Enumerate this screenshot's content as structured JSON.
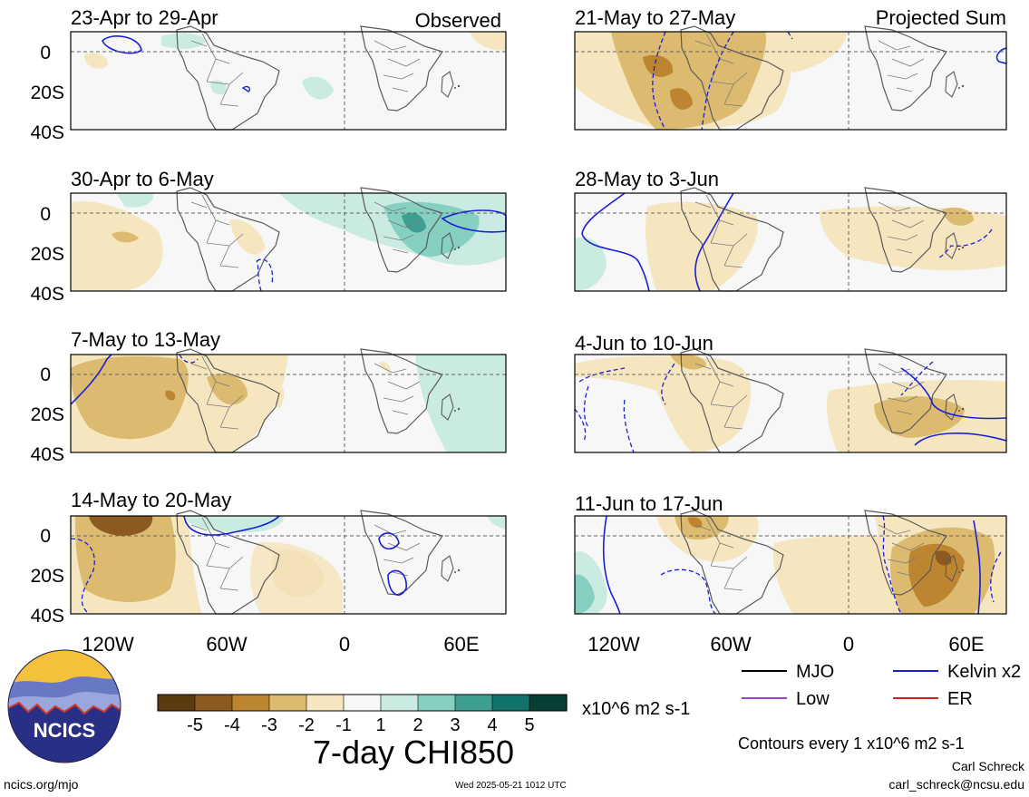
{
  "columns": [
    {
      "header": "Observed",
      "panels": [
        "23-Apr to 29-Apr",
        "30-Apr to 6-May",
        "7-May to 13-May",
        "14-May to 20-May"
      ]
    },
    {
      "header": "Projected Sum",
      "panels": [
        "21-May to 27-May",
        "28-May to 3-Jun",
        "4-Jun to 10-Jun",
        "11-Jun to 17-Jun"
      ]
    }
  ],
  "lat_labels": [
    "0",
    "20S",
    "40S"
  ],
  "lon_labels": [
    "120W",
    "60W",
    "0",
    "60E"
  ],
  "colorbar": {
    "ticks": [
      "-5",
      "-4",
      "-3",
      "-2",
      "-1",
      "1",
      "2",
      "3",
      "4",
      "5"
    ],
    "colors": [
      "#5b3a10",
      "#8c5a1e",
      "#bd852f",
      "#dcbb70",
      "#f5e6c0",
      "#f7f7f7",
      "#c9ebe2",
      "#86d0c1",
      "#3e9e8f",
      "#11736a",
      "#063e34"
    ],
    "units": "x10^6 m2 s-1",
    "title": "7-day CHI850"
  },
  "legend": {
    "items": [
      {
        "label": "MJO",
        "color": "#000000"
      },
      {
        "label": "Kelvin x2",
        "color": "#1a1fd6"
      },
      {
        "label": "Low",
        "color": "#9b40d8"
      },
      {
        "label": "ER",
        "color": "#d52020"
      }
    ],
    "contour_note": "Contours every 1 x10^6 m2 s-1"
  },
  "logo": {
    "text": "NCICS"
  },
  "footer": {
    "site": "ncics.org/mjo",
    "timestamp": "Wed 2025-05-21 1012 UTC",
    "author": "Carl Schreck",
    "email": "carl_schreck@ncsu.edu"
  }
}
